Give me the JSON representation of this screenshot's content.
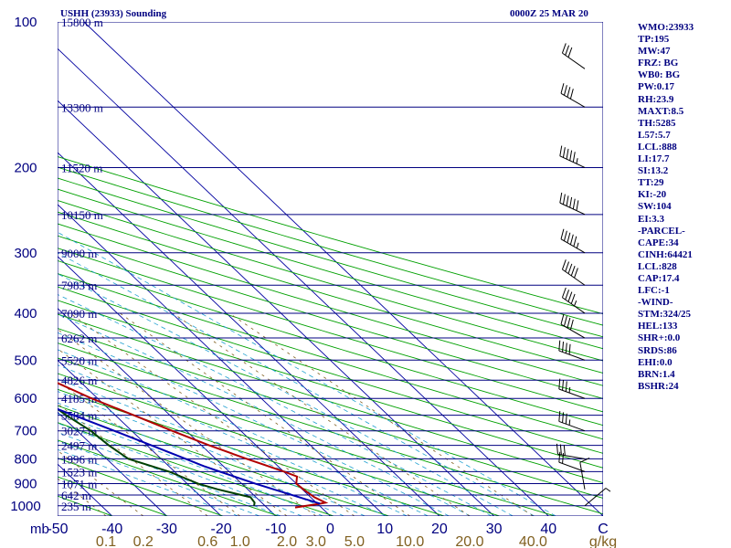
{
  "header": {
    "station": "USHH (23933) Sounding",
    "time": "0000Z 25 MAR 20"
  },
  "stats": [
    "WMO:23933",
    "TP:195",
    "MW:47",
    "FRZ: BG",
    "WB0: BG",
    "PW:0.17",
    "RH:23.9",
    "MAXT:8.5",
    "TH:5285",
    "L57:5.7",
    "LCL:888",
    "LI:17.7",
    "SI:13.2",
    "TT:29",
    "KI:-20",
    "SW:104",
    "EI:3.3",
    "-PARCEL-",
    "CAPE:34",
    "CINH:64421",
    "LCL:828",
    "CAP:17.4",
    "LFC:-1",
    "-WIND-",
    "STM:324/25",
    "HEL:133",
    "SHR+:0.0",
    "SRDS:86",
    "EHI:0.0",
    "BRN:1.4",
    "BSHR:24"
  ],
  "colors": {
    "isobar": "#000080",
    "temperature": "#b00000",
    "dewpoint": "#004000",
    "parcel": "#0000b0",
    "dry_adiabat": "#00a000",
    "moist_adiabat": "#20a0d0",
    "mixing_ratio": "#806020",
    "isotherm": "#0000a0",
    "temp_axis_text": "#000080",
    "mixing_axis_text": "#806020"
  },
  "chart_data": {
    "type": "line",
    "chart_kind": "skew-T log-P sounding",
    "pressure_axis": {
      "label": "mb",
      "ticks": [
        100,
        200,
        300,
        400,
        500,
        600,
        700,
        800,
        900,
        1000
      ],
      "range_mb": [
        100,
        1050
      ],
      "scale": "log"
    },
    "temperature_axis": {
      "ticks": [
        "-50",
        "-40",
        "-30",
        "-20",
        "-10",
        "0",
        "10",
        "20",
        "30",
        "40"
      ],
      "range_c": [
        -50,
        50
      ],
      "end_label": "C"
    },
    "mixing_ratio_axis": {
      "ticks": [
        "0.1",
        "0.2",
        "0.6",
        "1.0",
        "2.0",
        "3.0",
        "5.0",
        "10.0",
        "20.0",
        "40.0"
      ],
      "values": [
        0.1,
        0.2,
        0.6,
        1.0,
        2.0,
        3.0,
        5.0,
        10.0,
        20.0,
        40.0
      ],
      "unit": "g/kg"
    },
    "height_labels": [
      {
        "p": 100,
        "text": "15800 m"
      },
      {
        "p": 150,
        "text": "13300 m"
      },
      {
        "p": 200,
        "text": "11520 m"
      },
      {
        "p": 250,
        "text": "10150 m"
      },
      {
        "p": 300,
        "text": "9000 m"
      },
      {
        "p": 350,
        "text": "7983 m"
      },
      {
        "p": 400,
        "text": "7090 m"
      },
      {
        "p": 450,
        "text": "6262 m"
      },
      {
        "p": 500,
        "text": "5520 m"
      },
      {
        "p": 550,
        "text": "4826 m"
      },
      {
        "p": 600,
        "text": "4185 m"
      },
      {
        "p": 650,
        "text": "3584 m"
      },
      {
        "p": 700,
        "text": "3027 m"
      },
      {
        "p": 750,
        "text": "2497 m"
      },
      {
        "p": 800,
        "text": "1996 m"
      },
      {
        "p": 850,
        "text": "1523 m"
      },
      {
        "p": 900,
        "text": "1071 m"
      },
      {
        "p": 950,
        "text": "642 m"
      },
      {
        "p": 1000,
        "text": "235 m"
      }
    ],
    "series": [
      {
        "key": "temperature",
        "points": [
          [
            1008,
            -4.8
          ],
          [
            990,
            0.5
          ],
          [
            985,
            1.7
          ],
          [
            960,
            0.7
          ],
          [
            925,
            0.2
          ],
          [
            900,
            0.0
          ],
          [
            870,
            1.5
          ],
          [
            850,
            0.1
          ],
          [
            800,
            -4.3
          ],
          [
            750,
            -8.6
          ],
          [
            700,
            -12.6
          ],
          [
            650,
            -16.6
          ],
          [
            600,
            -21.1
          ],
          [
            550,
            -25.0
          ],
          [
            500,
            -30.5
          ],
          [
            450,
            -36.5
          ],
          [
            400,
            -43.0
          ],
          [
            350,
            -50.5
          ],
          [
            310,
            -56.5
          ],
          [
            300,
            -57.0
          ],
          [
            250,
            -58.0
          ],
          [
            220,
            -57.8
          ],
          [
            200,
            -55.7
          ],
          [
            175,
            -52.0
          ],
          [
            150,
            -55.0
          ],
          [
            140,
            -56.0
          ],
          [
            125,
            -58.0
          ],
          [
            110,
            -58.5
          ],
          [
            100,
            -58.5
          ]
        ]
      },
      {
        "key": "dewpoint",
        "points": [
          [
            1000,
            -12.0
          ],
          [
            985,
            -11.3
          ],
          [
            960,
            -11.0
          ],
          [
            925,
            -15.5
          ],
          [
            900,
            -18.0
          ],
          [
            850,
            -21.0
          ],
          [
            800,
            -26.0
          ],
          [
            750,
            -27.0
          ],
          [
            700,
            -27.5
          ],
          [
            650,
            -29.0
          ],
          [
            600,
            -30.0
          ],
          [
            550,
            -34.0
          ],
          [
            500,
            -39.0
          ],
          [
            450,
            -46.5
          ],
          [
            400,
            -53.5
          ],
          [
            350,
            -60.5
          ],
          [
            300,
            -67.5
          ],
          [
            250,
            -74.5
          ],
          [
            220,
            -78.0
          ],
          [
            200,
            -78.5
          ],
          [
            175,
            -77.0
          ],
          [
            150,
            -77.0
          ],
          [
            140,
            -78.0
          ],
          [
            125,
            -75.0
          ],
          [
            110,
            -71.0
          ],
          [
            100,
            -68.0
          ]
        ]
      },
      {
        "key": "parcel",
        "points": [
          [
            990,
            0.5
          ],
          [
            950,
            -3.0
          ],
          [
            900,
            -7.5
          ],
          [
            850,
            -11.7
          ],
          [
            828,
            -13.6
          ],
          [
            800,
            -15.5
          ],
          [
            750,
            -19.2
          ],
          [
            700,
            -23.2
          ],
          [
            650,
            -27.6
          ],
          [
            600,
            -32.5
          ],
          [
            550,
            -37.8
          ],
          [
            500,
            -43.7
          ],
          [
            450,
            -50.1
          ],
          [
            400,
            -57.3
          ],
          [
            350,
            -65.3
          ],
          [
            300,
            -74.3
          ],
          [
            250,
            -84.6
          ],
          [
            200,
            -96.6
          ],
          [
            150,
            -111.5
          ],
          [
            120,
            -122.5
          ]
        ]
      }
    ],
    "wind_barbs": [
      {
        "p": 1000,
        "dir": 50,
        "spd": 5
      },
      {
        "p": 925,
        "dir": 350,
        "spd": 10
      },
      {
        "p": 850,
        "dir": 290,
        "spd": 20
      },
      {
        "p": 800,
        "dir": 280,
        "spd": 30
      },
      {
        "p": 700,
        "dir": 290,
        "spd": 35
      },
      {
        "p": 600,
        "dir": 290,
        "spd": 35
      },
      {
        "p": 500,
        "dir": 290,
        "spd": 40
      },
      {
        "p": 450,
        "dir": 300,
        "spd": 40
      },
      {
        "p": 400,
        "dir": 305,
        "spd": 45
      },
      {
        "p": 350,
        "dir": 305,
        "spd": 50
      },
      {
        "p": 300,
        "dir": 300,
        "spd": 55
      },
      {
        "p": 250,
        "dir": 295,
        "spd": 60
      },
      {
        "p": 200,
        "dir": 295,
        "spd": 55
      },
      {
        "p": 150,
        "dir": 300,
        "spd": 40
      },
      {
        "p": 125,
        "dir": 305,
        "spd": 30
      }
    ]
  }
}
